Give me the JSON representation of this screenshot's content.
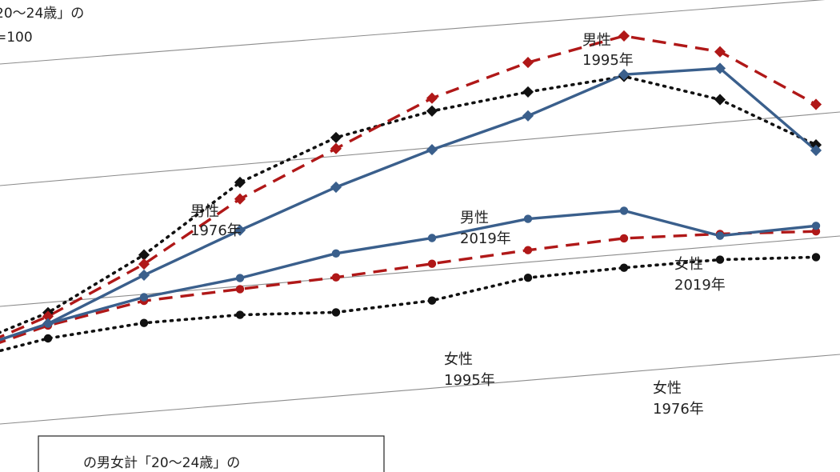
{
  "chart_data": {
    "type": "line",
    "header_lines": [
      "20～24歳」の",
      "=100"
    ],
    "note_box_text": "の男女計「20～24歳」の",
    "grid": true,
    "colors": {
      "y1976": "#111111",
      "y1995": "#b01818",
      "y2019": "#3a5f8c"
    },
    "series": [
      {
        "name": "男性 1976年",
        "label_lines": [
          "男性",
          "1976年"
        ],
        "sex": "male",
        "year": "1976",
        "values": [
          70,
          87,
          114,
          149,
          169,
          179,
          185,
          189,
          172,
          143
        ]
      },
      {
        "name": "男性 1995年",
        "label_lines": [
          "男性",
          "1995年"
        ],
        "sex": "male",
        "year": "1995",
        "values": [
          67,
          85,
          109,
          140,
          163,
          186,
          201,
          211,
          198,
          165
        ]
      },
      {
        "name": "男性 2019年",
        "label_lines": [
          "男性",
          "2019年"
        ],
        "sex": "male",
        "year": "2019",
        "values": [
          68,
          81,
          103,
          123,
          142,
          158,
          172,
          190,
          189,
          140
        ]
      },
      {
        "name": "女性 1976年",
        "label_lines": [
          "女性",
          "1976年"
        ],
        "sex": "female",
        "year": "1976",
        "values": [
          64,
          73,
          77,
          77,
          74,
          76,
          84,
          85,
          85,
          82
        ]
      },
      {
        "name": "女性 1995年",
        "label_lines": [
          "女性",
          "1995年"
        ],
        "sex": "female",
        "year": "1995",
        "values": [
          66,
          80,
          89,
          91,
          93,
          96,
          99,
          101,
          99,
          96
        ]
      },
      {
        "name": "女性 2019年",
        "label_lines": [
          "女性",
          "2019年"
        ],
        "sex": "female",
        "year": "2019",
        "values": [
          68,
          81,
          91,
          97,
          106,
          110,
          116,
          116,
          98,
          99
        ]
      }
    ]
  }
}
